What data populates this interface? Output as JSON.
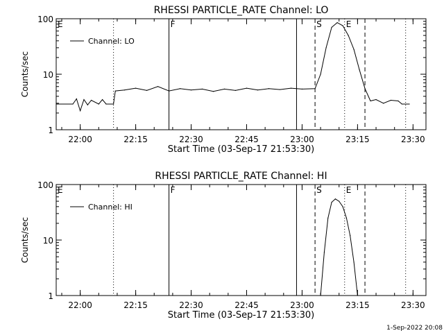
{
  "timestamp": "1-Sep-2022 20:08",
  "chart_data": [
    {
      "type": "line",
      "title": "RHESSI PARTICLE_RATE Channel: LO",
      "xlabel": "Start Time (03-Sep-17 21:53:30)",
      "ylabel": "Counts/sec",
      "yscale": "log",
      "xlim": [
        "21:53:30",
        "23:33:30"
      ],
      "ylim": [
        1,
        100
      ],
      "x_ticks": [
        "22:00",
        "22:15",
        "22:30",
        "22:45",
        "23:00",
        "23:15",
        "23:30"
      ],
      "y_ticks": [
        "1",
        "10",
        "100"
      ],
      "legend": {
        "position": "top-left",
        "entries": [
          "Channel: LO"
        ]
      },
      "markers": [
        {
          "label": "E",
          "time": "21:53:30",
          "style": "none"
        },
        {
          "label": "",
          "time": "22:09:00",
          "style": "dotted"
        },
        {
          "label": "F",
          "time": "22:24:00",
          "style": "solid"
        },
        {
          "label": "",
          "time": "22:58:30",
          "style": "solid"
        },
        {
          "label": "S",
          "time": "23:03:30",
          "style": "dashed"
        },
        {
          "label": "E",
          "time": "23:11:30",
          "style": "dotted"
        },
        {
          "label": "",
          "time": "23:17:00",
          "style": "dashed"
        },
        {
          "label": "",
          "time": "23:28:00",
          "style": "dotted"
        }
      ],
      "series": [
        {
          "x": [
            "21:53:30",
            "21:58:00",
            "21:59:00",
            "22:00:00",
            "22:01:00",
            "22:02:00",
            "22:03:00",
            "22:05:00",
            "22:06:00",
            "22:07:00",
            "22:09:00",
            "22:09:30",
            "22:12:00",
            "22:15:00",
            "22:18:00",
            "22:21:00",
            "22:24:00",
            "22:27:00",
            "22:30:00",
            "22:33:00",
            "22:36:00",
            "22:39:00",
            "22:42:00",
            "22:45:00",
            "22:48:00",
            "22:51:00",
            "22:54:00",
            "22:57:00",
            "23:00:00",
            "23:03:30",
            "23:05:00",
            "23:06:30",
            "23:08:00",
            "23:09:30",
            "23:11:00",
            "23:12:30",
            "23:14:00",
            "23:15:30",
            "23:17:00",
            "23:18:30",
            "23:20:00",
            "23:22:00",
            "23:24:00",
            "23:26:00",
            "23:27:00",
            "23:29:00"
          ],
          "y": [
            2.9,
            2.9,
            3.6,
            2.2,
            3.5,
            2.8,
            3.4,
            2.9,
            3.5,
            2.9,
            2.9,
            5.0,
            5.2,
            5.6,
            5.1,
            6.0,
            5.0,
            5.5,
            5.2,
            5.4,
            4.9,
            5.4,
            5.1,
            5.6,
            5.2,
            5.5,
            5.3,
            5.6,
            5.4,
            5.5,
            10,
            30,
            70,
            85,
            75,
            50,
            28,
            12,
            5.5,
            3.3,
            3.5,
            3.0,
            3.4,
            3.3,
            2.9,
            2.9
          ]
        }
      ]
    },
    {
      "type": "line",
      "title": "RHESSI PARTICLE_RATE Channel: HI",
      "xlabel": "Start Time (03-Sep-17 21:53:30)",
      "ylabel": "Counts/sec",
      "yscale": "log",
      "xlim": [
        "21:53:30",
        "23:33:30"
      ],
      "ylim": [
        1,
        100
      ],
      "x_ticks": [
        "22:00",
        "22:15",
        "22:30",
        "22:45",
        "23:00",
        "23:15",
        "23:30"
      ],
      "y_ticks": [
        "1",
        "10",
        "100"
      ],
      "legend": {
        "position": "top-left",
        "entries": [
          "Channel: HI"
        ]
      },
      "markers": [
        {
          "label": "E",
          "time": "21:53:30",
          "style": "none"
        },
        {
          "label": "",
          "time": "22:09:00",
          "style": "dotted"
        },
        {
          "label": "F",
          "time": "22:24:00",
          "style": "solid"
        },
        {
          "label": "",
          "time": "22:58:30",
          "style": "solid"
        },
        {
          "label": "S",
          "time": "23:03:30",
          "style": "dashed"
        },
        {
          "label": "E",
          "time": "23:11:30",
          "style": "dotted"
        },
        {
          "label": "",
          "time": "23:17:00",
          "style": "dashed"
        },
        {
          "label": "",
          "time": "23:28:00",
          "style": "dotted"
        }
      ],
      "series": [
        {
          "x": [
            "23:05:00",
            "23:06:00",
            "23:07:00",
            "23:08:00",
            "23:09:00",
            "23:10:00",
            "23:11:00",
            "23:12:00",
            "23:13:00",
            "23:14:00",
            "23:15:00"
          ],
          "y": [
            1,
            6,
            25,
            48,
            55,
            50,
            40,
            25,
            12,
            4,
            1
          ]
        }
      ]
    }
  ]
}
